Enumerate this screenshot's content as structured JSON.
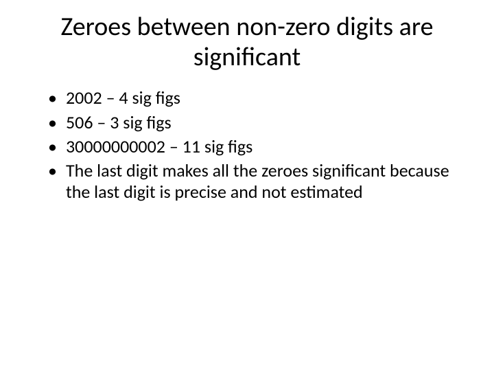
{
  "slide": {
    "title": "Zeroes between non-zero digits are significant",
    "title_fontsize": 38,
    "title_color": "#000000",
    "bullets": [
      "2002 – 4 sig figs",
      "506 – 3 sig figs",
      "30000000002 – 11 sig figs",
      "The last digit makes all the zeroes significant because the last digit is precise and not estimated"
    ],
    "bullet_fontsize": 26,
    "bullet_color": "#000000",
    "background_color": "#ffffff"
  }
}
